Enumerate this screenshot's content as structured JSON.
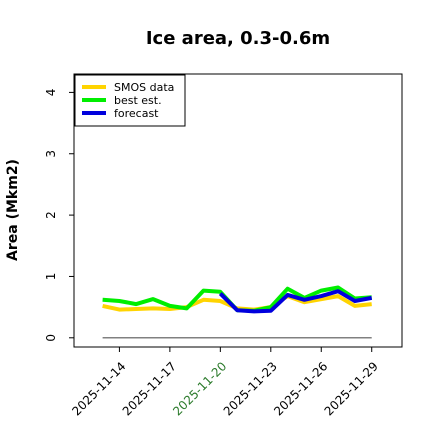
{
  "chart_data": {
    "type": "line",
    "title": "Ice area, 0.3-0.6m",
    "ylabel": "Area (Mkm2)",
    "xlabel": "",
    "ylim": [
      -0.15,
      4.3
    ],
    "yticks": [
      0,
      1,
      2,
      3,
      4
    ],
    "x_tick_labels": [
      {
        "label": "2025-11-14",
        "day": 14,
        "color": "#000000"
      },
      {
        "label": "2025-11-17",
        "day": 17,
        "color": "#000000"
      },
      {
        "label": "2025-11-20",
        "day": 20,
        "color": "#2a7a2a"
      },
      {
        "label": "2025-11-23",
        "day": 23,
        "color": "#000000"
      },
      {
        "label": "2025-11-26",
        "day": 26,
        "color": "#000000"
      },
      {
        "label": "2025-11-29",
        "day": 29,
        "color": "#000000"
      }
    ],
    "xlim_days": [
      11.3,
      30.8
    ],
    "series": [
      {
        "name": "SMOS data",
        "color": "#ffd400",
        "x": [
          13,
          14,
          15,
          16,
          17,
          18,
          19,
          20,
          21,
          22,
          23,
          24,
          25,
          26,
          27,
          28,
          29
        ],
        "values": [
          0.52,
          0.46,
          0.47,
          0.48,
          0.47,
          0.5,
          0.62,
          0.6,
          0.48,
          0.46,
          0.5,
          0.68,
          0.58,
          0.63,
          0.68,
          0.52,
          0.55
        ]
      },
      {
        "name": "best est.",
        "color": "#00ee00",
        "x": [
          13,
          14,
          15,
          16,
          17,
          18,
          19,
          20,
          21,
          22,
          23,
          24,
          25,
          26,
          27,
          28,
          29
        ],
        "values": [
          0.62,
          0.6,
          0.55,
          0.63,
          0.52,
          0.48,
          0.77,
          0.75,
          0.45,
          0.44,
          0.5,
          0.8,
          0.65,
          0.77,
          0.82,
          0.64,
          0.66
        ]
      },
      {
        "name": "forecast",
        "color": "#0000dd",
        "x": [
          20,
          21,
          22,
          23,
          24,
          25,
          26,
          27,
          28,
          29
        ],
        "values": [
          0.72,
          0.45,
          0.43,
          0.44,
          0.7,
          0.62,
          0.68,
          0.76,
          0.6,
          0.65
        ]
      },
      {
        "name": "",
        "color": "#808080",
        "x": [
          13,
          29
        ],
        "values": [
          0,
          0
        ]
      }
    ],
    "legend": {
      "placement": "top-left",
      "entries": [
        "SMOS data",
        "best est.",
        "forecast"
      ]
    },
    "grid": false
  }
}
